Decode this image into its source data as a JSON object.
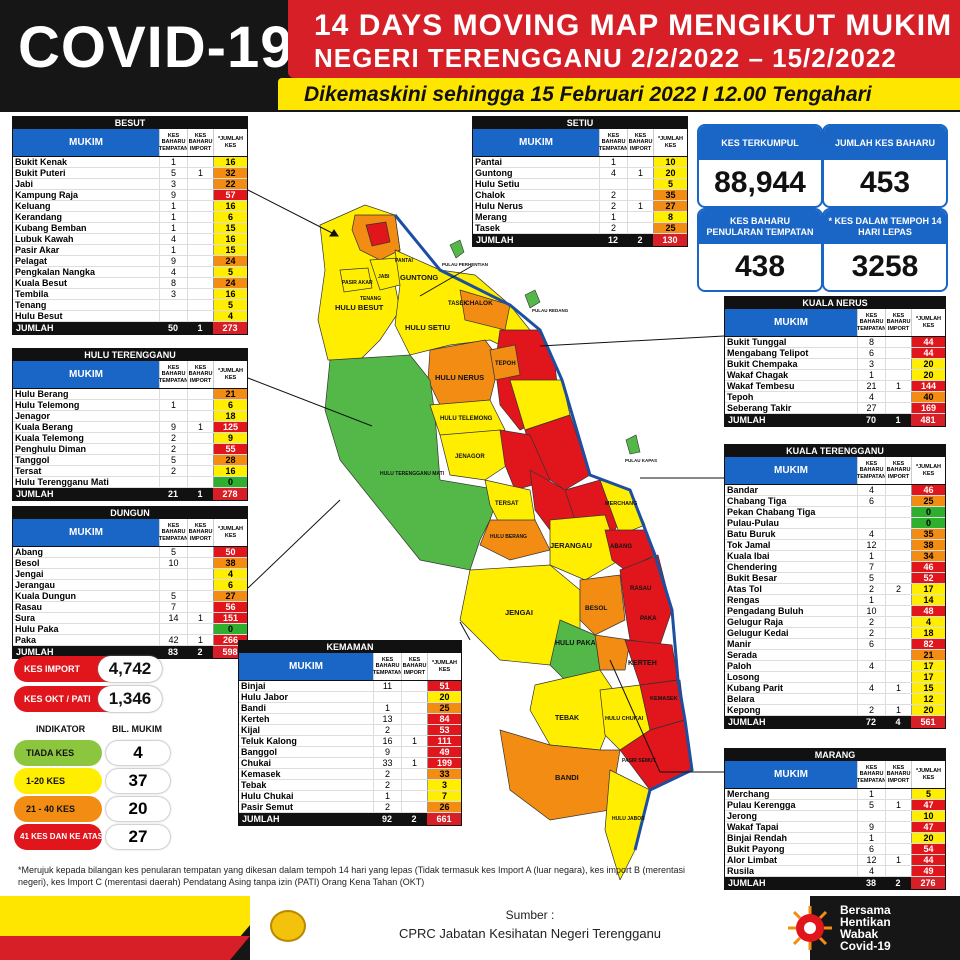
{
  "header": {
    "brand": "COVID-19",
    "title_line1": "14 DAYS MOVING MAP MENGIKUT MUKIM",
    "title_line2": "NEGERI TERENGGANU 2/2/2022 – 15/2/2022",
    "subtitle": "Dikemaskini sehingga 15 Februari 2022 I 12.00 Tengahari"
  },
  "columns": {
    "mukim": "MUKIM",
    "tempatan": "KES BAHARU TEMPATAN",
    "import": "KES BAHARU IMPORT",
    "jumlah": "*JUMLAH KES",
    "total_label": "JUMLAH"
  },
  "colors": {
    "green": "#2eaf2e",
    "yellow": "#ffee00",
    "orange": "#f28c13",
    "red": "#e0161c",
    "header_blue": "#1a66c7",
    "brand_red": "#d61f26",
    "brand_yellow": "#ffe600"
  },
  "districts": [
    {
      "id": "besut",
      "name": "BESUT",
      "rows": [
        {
          "n": "Bukit Kenak",
          "t": "1",
          "i": "",
          "k": "16",
          "c": "y"
        },
        {
          "n": "Bukit Puteri",
          "t": "5",
          "i": "1",
          "k": "32",
          "c": "o"
        },
        {
          "n": "Jabi",
          "t": "3",
          "i": "",
          "k": "22",
          "c": "o"
        },
        {
          "n": "Kampung Raja",
          "t": "9",
          "i": "",
          "k": "57",
          "c": "r"
        },
        {
          "n": "Keluang",
          "t": "1",
          "i": "",
          "k": "16",
          "c": "y"
        },
        {
          "n": "Kerandang",
          "t": "1",
          "i": "",
          "k": "6",
          "c": "y"
        },
        {
          "n": "Kubang Bemban",
          "t": "1",
          "i": "",
          "k": "15",
          "c": "y"
        },
        {
          "n": "Lubuk Kawah",
          "t": "4",
          "i": "",
          "k": "16",
          "c": "y"
        },
        {
          "n": "Pasir Akar",
          "t": "1",
          "i": "",
          "k": "15",
          "c": "y"
        },
        {
          "n": "Pelagat",
          "t": "9",
          "i": "",
          "k": "24",
          "c": "o"
        },
        {
          "n": "Pengkalan Nangka",
          "t": "4",
          "i": "",
          "k": "5",
          "c": "y"
        },
        {
          "n": "Kuala Besut",
          "t": "8",
          "i": "",
          "k": "24",
          "c": "o"
        },
        {
          "n": "Tembila",
          "t": "3",
          "i": "",
          "k": "16",
          "c": "y"
        },
        {
          "n": "Tenang",
          "t": "",
          "i": "",
          "k": "5",
          "c": "y"
        },
        {
          "n": "Hulu Besut",
          "t": "",
          "i": "",
          "k": "4",
          "c": "y"
        }
      ],
      "total": {
        "t": "50",
        "i": "1",
        "k": "273"
      }
    },
    {
      "id": "hulu_terengganu",
      "name": "HULU TERENGGANU",
      "rows": [
        {
          "n": "Hulu Berang",
          "t": "",
          "i": "",
          "k": "21",
          "c": "o"
        },
        {
          "n": "Hulu Telemong",
          "t": "1",
          "i": "",
          "k": "6",
          "c": "y"
        },
        {
          "n": "Jenagor",
          "t": "",
          "i": "",
          "k": "18",
          "c": "y"
        },
        {
          "n": "Kuala Berang",
          "t": "9",
          "i": "1",
          "k": "125",
          "c": "r"
        },
        {
          "n": "Kuala Telemong",
          "t": "2",
          "i": "",
          "k": "9",
          "c": "y"
        },
        {
          "n": "Penghulu Diman",
          "t": "2",
          "i": "",
          "k": "55",
          "c": "r"
        },
        {
          "n": "Tanggol",
          "t": "5",
          "i": "",
          "k": "28",
          "c": "o"
        },
        {
          "n": "Tersat",
          "t": "2",
          "i": "",
          "k": "16",
          "c": "y"
        },
        {
          "n": "Hulu Terengganu Mati",
          "t": "",
          "i": "",
          "k": "0",
          "c": "g"
        }
      ],
      "total": {
        "t": "21",
        "i": "1",
        "k": "278"
      }
    },
    {
      "id": "dungun",
      "name": "DUNGUN",
      "rows": [
        {
          "n": "Abang",
          "t": "5",
          "i": "",
          "k": "50",
          "c": "r"
        },
        {
          "n": "Besol",
          "t": "10",
          "i": "",
          "k": "38",
          "c": "o"
        },
        {
          "n": "Jengai",
          "t": "",
          "i": "",
          "k": "4",
          "c": "y"
        },
        {
          "n": "Jerangau",
          "t": "",
          "i": "",
          "k": "6",
          "c": "y"
        },
        {
          "n": "Kuala Dungun",
          "t": "5",
          "i": "",
          "k": "27",
          "c": "o"
        },
        {
          "n": "Rasau",
          "t": "7",
          "i": "",
          "k": "56",
          "c": "r"
        },
        {
          "n": "Sura",
          "t": "14",
          "i": "1",
          "k": "151",
          "c": "r"
        },
        {
          "n": "Hulu Paka",
          "t": "",
          "i": "",
          "k": "0",
          "c": "g"
        },
        {
          "n": "Paka",
          "t": "42",
          "i": "1",
          "k": "266",
          "c": "r"
        }
      ],
      "total": {
        "t": "83",
        "i": "2",
        "k": "598"
      }
    },
    {
      "id": "setiu",
      "name": "SETIU",
      "rows": [
        {
          "n": "Pantai",
          "t": "1",
          "i": "",
          "k": "10",
          "c": "y"
        },
        {
          "n": "Guntong",
          "t": "4",
          "i": "1",
          "k": "20",
          "c": "y"
        },
        {
          "n": "Hulu Setiu",
          "t": "",
          "i": "",
          "k": "5",
          "c": "y"
        },
        {
          "n": "Chalok",
          "t": "2",
          "i": "",
          "k": "35",
          "c": "o"
        },
        {
          "n": "Hulu Nerus",
          "t": "2",
          "i": "1",
          "k": "27",
          "c": "o"
        },
        {
          "n": "Merang",
          "t": "1",
          "i": "",
          "k": "8",
          "c": "y"
        },
        {
          "n": "Tasek",
          "t": "2",
          "i": "",
          "k": "25",
          "c": "o"
        }
      ],
      "total": {
        "t": "12",
        "i": "2",
        "k": "130"
      }
    },
    {
      "id": "kuala_nerus",
      "name": "KUALA NERUS",
      "rows": [
        {
          "n": "Bukit Tunggal",
          "t": "8",
          "i": "",
          "k": "44",
          "c": "r"
        },
        {
          "n": "Mengabang Telipot",
          "t": "6",
          "i": "",
          "k": "44",
          "c": "r"
        },
        {
          "n": "Bukit Chempaka",
          "t": "3",
          "i": "",
          "k": "20",
          "c": "y"
        },
        {
          "n": "Wakaf Chagak",
          "t": "1",
          "i": "",
          "k": "20",
          "c": "y"
        },
        {
          "n": "Wakaf Tembesu",
          "t": "21",
          "i": "1",
          "k": "144",
          "c": "r"
        },
        {
          "n": "Tepoh",
          "t": "4",
          "i": "",
          "k": "40",
          "c": "o"
        },
        {
          "n": "Seberang Takir",
          "t": "27",
          "i": "",
          "k": "169",
          "c": "r"
        }
      ],
      "total": {
        "t": "70",
        "i": "1",
        "k": "481"
      }
    },
    {
      "id": "kuala_terengganu",
      "name": "KUALA TERENGGANU",
      "rows": [
        {
          "n": "Bandar",
          "t": "4",
          "i": "",
          "k": "46",
          "c": "r"
        },
        {
          "n": "Chabang Tiga",
          "t": "6",
          "i": "",
          "k": "25",
          "c": "o"
        },
        {
          "n": "Pekan Chabang Tiga",
          "t": "",
          "i": "",
          "k": "0",
          "c": "g"
        },
        {
          "n": "Pulau-Pulau",
          "t": "",
          "i": "",
          "k": "0",
          "c": "g"
        },
        {
          "n": "Batu Buruk",
          "t": "4",
          "i": "",
          "k": "35",
          "c": "o"
        },
        {
          "n": "Tok Jamal",
          "t": "12",
          "i": "",
          "k": "38",
          "c": "o"
        },
        {
          "n": "Kuala Ibai",
          "t": "1",
          "i": "",
          "k": "34",
          "c": "o"
        },
        {
          "n": "Chendering",
          "t": "7",
          "i": "",
          "k": "46",
          "c": "r"
        },
        {
          "n": "Bukit Besar",
          "t": "5",
          "i": "",
          "k": "52",
          "c": "r"
        },
        {
          "n": "Atas Tol",
          "t": "2",
          "i": "2",
          "k": "17",
          "c": "y"
        },
        {
          "n": "Rengas",
          "t": "1",
          "i": "",
          "k": "14",
          "c": "y"
        },
        {
          "n": "Pengadang Buluh",
          "t": "10",
          "i": "",
          "k": "48",
          "c": "r"
        },
        {
          "n": "Gelugur Raja",
          "t": "2",
          "i": "",
          "k": "4",
          "c": "y"
        },
        {
          "n": "Gelugur Kedai",
          "t": "2",
          "i": "",
          "k": "18",
          "c": "y"
        },
        {
          "n": "Manir",
          "t": "6",
          "i": "",
          "k": "82",
          "c": "r"
        },
        {
          "n": "Serada",
          "t": "",
          "i": "",
          "k": "21",
          "c": "o"
        },
        {
          "n": "Paloh",
          "t": "4",
          "i": "",
          "k": "17",
          "c": "y"
        },
        {
          "n": "Losong",
          "t": "",
          "i": "",
          "k": "17",
          "c": "y"
        },
        {
          "n": "Kubang Parit",
          "t": "4",
          "i": "1",
          "k": "15",
          "c": "y"
        },
        {
          "n": "Belara",
          "t": "",
          "i": "",
          "k": "12",
          "c": "y"
        },
        {
          "n": "Kepong",
          "t": "2",
          "i": "1",
          "k": "20",
          "c": "y"
        }
      ],
      "total": {
        "t": "72",
        "i": "4",
        "k": "561"
      }
    },
    {
      "id": "marang",
      "name": "MARANG",
      "rows": [
        {
          "n": "Merchang",
          "t": "1",
          "i": "",
          "k": "5",
          "c": "y"
        },
        {
          "n": "Pulau Kerengga",
          "t": "5",
          "i": "1",
          "k": "47",
          "c": "r"
        },
        {
          "n": "Jerong",
          "t": "",
          "i": "",
          "k": "10",
          "c": "y"
        },
        {
          "n": "Wakaf Tapai",
          "t": "9",
          "i": "",
          "k": "47",
          "c": "r"
        },
        {
          "n": "Binjai Rendah",
          "t": "1",
          "i": "",
          "k": "20",
          "c": "y"
        },
        {
          "n": "Bukit Payong",
          "t": "6",
          "i": "",
          "k": "54",
          "c": "r"
        },
        {
          "n": "Alor Limbat",
          "t": "12",
          "i": "1",
          "k": "44",
          "c": "r"
        },
        {
          "n": "Rusila",
          "t": "4",
          "i": "",
          "k": "49",
          "c": "r"
        }
      ],
      "total": {
        "t": "38",
        "i": "2",
        "k": "276"
      }
    },
    {
      "id": "kemaman",
      "name": "KEMAMAN",
      "rows": [
        {
          "n": "Binjai",
          "t": "11",
          "i": "",
          "k": "51",
          "c": "r"
        },
        {
          "n": "Hulu Jabor",
          "t": "",
          "i": "",
          "k": "20",
          "c": "y"
        },
        {
          "n": "Bandi",
          "t": "1",
          "i": "",
          "k": "25",
          "c": "o"
        },
        {
          "n": "Kerteh",
          "t": "13",
          "i": "",
          "k": "84",
          "c": "r"
        },
        {
          "n": "Kijal",
          "t": "2",
          "i": "",
          "k": "53",
          "c": "r"
        },
        {
          "n": "Teluk Kalong",
          "t": "16",
          "i": "1",
          "k": "111",
          "c": "r"
        },
        {
          "n": "Banggol",
          "t": "9",
          "i": "",
          "k": "49",
          "c": "r"
        },
        {
          "n": "Chukai",
          "t": "33",
          "i": "1",
          "k": "199",
          "c": "r"
        },
        {
          "n": "Kemasek",
          "t": "2",
          "i": "",
          "k": "33",
          "c": "o"
        },
        {
          "n": "Tebak",
          "t": "2",
          "i": "",
          "k": "3",
          "c": "y"
        },
        {
          "n": "Hulu Chukai",
          "t": "1",
          "i": "",
          "k": "7",
          "c": "y"
        },
        {
          "n": "Pasir Semut",
          "t": "2",
          "i": "",
          "k": "26",
          "c": "o"
        }
      ],
      "total": {
        "t": "92",
        "i": "2",
        "k": "661"
      }
    }
  ],
  "stats": {
    "kes_terkumpul": {
      "label": "KES TERKUMPUL",
      "value": "88,944"
    },
    "jumlah_kes_baharu": {
      "label": "JUMLAH KES BAHARU",
      "value": "453"
    },
    "kes_baharu_tempatan": {
      "label": "KES BAHARU PENULARAN TEMPATAN",
      "value": "438"
    },
    "kes_dalam_tempoh": {
      "label": "* KES DALAM TEMPOH 14 HARI LEPAS",
      "value": "3258"
    }
  },
  "imports": {
    "kes_import": {
      "label": "KES IMPORT",
      "value": "4,742"
    },
    "kes_okt": {
      "label": "KES OKT / PATI",
      "value": "1,346"
    }
  },
  "legend": {
    "indikator": "INDIKATOR",
    "bil_mukim": "BIL. MUKIM",
    "items": [
      {
        "label": "TIADA KES",
        "value": "4",
        "color": "#8cc63f"
      },
      {
        "label": "1-20 KES",
        "value": "37",
        "color": "#ffee00"
      },
      {
        "label": "21 - 40 KES",
        "value": "20",
        "color": "#f28c13"
      },
      {
        "label": "41 KES DAN KE ATAS",
        "value": "27",
        "color": "#e0161c"
      }
    ]
  },
  "map_labels": {
    "guntong": "GUNTONG",
    "hulu_besut": "HULU BESUT",
    "hulu_setiu": "HULU SETIU",
    "tasek": "TASEK",
    "chalok": "CHALOK",
    "hulu_nerus": "HULU NERUS",
    "hulu_terengganu_mati": "HULU TERENGGANU MATI",
    "hulu_telemong": "HULU TELEMONG",
    "jenagor": "JENAGOR",
    "tersat": "TERSAT",
    "hulu_berang": "HULU BERANG",
    "jerangau": "JERANGAU",
    "jengai": "JENGAI",
    "besol": "BESOL",
    "hulu_paka": "HULU PAKA",
    "tebak": "TEBAK",
    "bandi": "BANDI",
    "kerteh": "KERTEH",
    "abang": "ABANG",
    "rasau": "RASAU",
    "paka": "PAKA",
    "merchang": "MERCHANG",
    "tepoh": "TEPOH",
    "jabi": "JABI",
    "tenang": "TENANG",
    "pasir_akar": "PASIR AKAR",
    "pantai": "PANTAI",
    "hulu_chukai": "HULU CHUKAI",
    "kemasek": "KEMASEK",
    "hulu_jabor": "HULU JABOR",
    "pasir_semut": "PASIR SEMUT",
    "pulau_redang": "PULAU REDANG",
    "pulau_kapas": "PULAU KAPAS",
    "pulau_perhentian": "PULAU PERHENTIAN"
  },
  "note": "*Merujuk kepada bilangan kes penularan tempatan yang dikesan dalam tempoh 14 hari yang lepas (Tidak termasuk kes Import A (luar negara), kes import B (merentasi negeri), kes Import C (merentasi daerah) Pendatang Asing tanpa izin (PATI) Orang Kena Tahan (OKT)",
  "footer": {
    "sumber": "Sumber :",
    "source": "CPRC Jabatan Kesihatan Negeri  Terengganu",
    "bersama_l1": "Bersama",
    "bersama_l2": "Hentikan",
    "bersama_l3": "Wabak",
    "bersama_l4": "Covid-19"
  }
}
